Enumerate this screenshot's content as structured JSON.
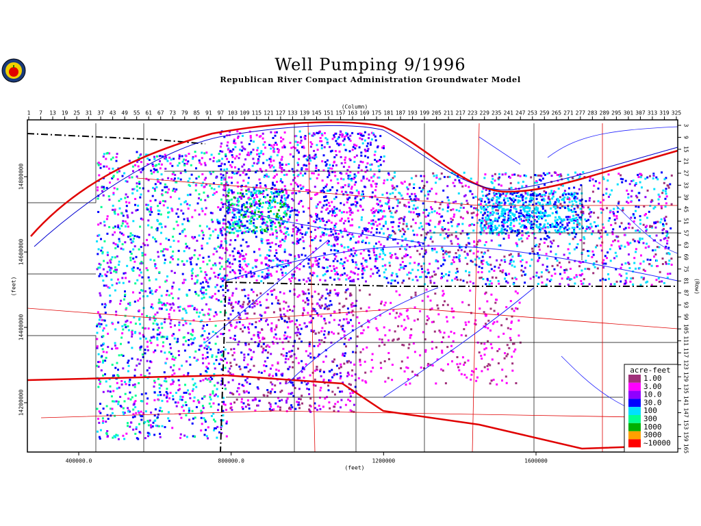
{
  "header": {
    "title": "Well Pumping 9/1996",
    "subtitle": "Republican River Compact Administration Groundwater Model"
  },
  "column_axis": {
    "label": "(Column)",
    "ticks": [
      1,
      7,
      13,
      19,
      25,
      31,
      37,
      43,
      49,
      55,
      61,
      67,
      73,
      79,
      85,
      91,
      97,
      103,
      109,
      115,
      121,
      127,
      133,
      139,
      145,
      151,
      157,
      163,
      169,
      175,
      181,
      187,
      193,
      199,
      205,
      211,
      217,
      223,
      229,
      235,
      241,
      247,
      253,
      259,
      265,
      271,
      277,
      283,
      289,
      295,
      301,
      307,
      313,
      319,
      325
    ]
  },
  "row_axis": {
    "label": "(Row)",
    "ticks": [
      3,
      9,
      15,
      21,
      27,
      33,
      39,
      45,
      51,
      57,
      63,
      69,
      75,
      81,
      87,
      93,
      99,
      105,
      111,
      117,
      123,
      129,
      135,
      141,
      147,
      153,
      159,
      165
    ]
  },
  "x_feet_axis": {
    "label": "(feet)",
    "ticks": [
      {
        "value": 400000,
        "label": "400000.0"
      },
      {
        "value": 800000,
        "label": "800000.0"
      },
      1200000,
      1600000
    ]
  },
  "y_feet_axis": {
    "label": "(feet)",
    "ticks": [
      14800000,
      14600000,
      14400000,
      14200000
    ]
  },
  "legend": {
    "title": "acre-feet",
    "entries": [
      {
        "label": "1.00",
        "color": "#a0307a"
      },
      {
        "label": "3.00",
        "color": "#ff00ff"
      },
      {
        "label": "10.0",
        "color": "#9000ff"
      },
      {
        "label": "30.0",
        "color": "#0000ff"
      },
      {
        "label": "100",
        "color": "#00e0ff"
      },
      {
        "label": "300",
        "color": "#00ff90"
      },
      {
        "label": "1000",
        "color": "#00b000"
      },
      {
        "label": "3000",
        "color": "#ffa000"
      },
      {
        "label": "~10000",
        "color": "#ff0000"
      }
    ]
  }
}
